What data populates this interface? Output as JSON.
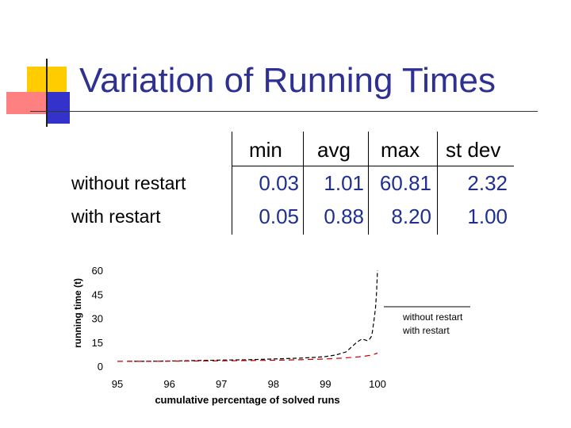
{
  "slide": {
    "title": "Variation of Running Times"
  },
  "colors": {
    "title": "#2e3192",
    "accent_yellow": "#ffcc00",
    "accent_pink": "#ff8080",
    "accent_blue": "#3333cc",
    "with_restart": "#c00000",
    "without_restart": "#000000",
    "blue_values": "#1f2f8f"
  },
  "table": {
    "columns": [
      "min",
      "avg",
      "max",
      "st dev"
    ],
    "rows": [
      {
        "label": "without restart",
        "values": [
          "0.03",
          "1.01",
          "60.81",
          "2.32"
        ]
      },
      {
        "label": "with restart",
        "values": [
          "0.05",
          "0.88",
          "8.20",
          "1.00"
        ]
      }
    ]
  },
  "chart_data": {
    "type": "line",
    "title": "",
    "xlabel": "cumulative percentage of solved runs",
    "ylabel": "running time (t)",
    "xlim": [
      95,
      100
    ],
    "ylim": [
      0,
      60
    ],
    "xticks": [
      "95",
      "96",
      "97",
      "98",
      "99",
      "100"
    ],
    "yticks": [
      "0",
      "15",
      "30",
      "45",
      "60"
    ],
    "legend": [
      "without restart",
      "with restart"
    ],
    "series": [
      {
        "name": "without restart",
        "style": "dashed",
        "x": [
          95.2,
          95.5,
          96.0,
          96.5,
          97.0,
          97.5,
          98.0,
          98.5,
          98.8,
          99.0,
          99.2,
          99.4,
          99.5,
          99.6,
          99.7,
          99.75,
          99.8,
          99.85,
          99.88,
          99.9,
          99.93,
          99.96,
          99.98,
          100.0
        ],
        "values": [
          3.0,
          3.0,
          3.2,
          3.5,
          3.8,
          4.0,
          4.5,
          5.0,
          5.5,
          6.0,
          7.0,
          9.0,
          12.0,
          15.0,
          17.0,
          16.5,
          16.0,
          17.0,
          18.5,
          21.0,
          28.0,
          36.0,
          45.0,
          60.0
        ]
      },
      {
        "name": "with restart",
        "style": "dashed",
        "x": [
          95.0,
          95.5,
          96.0,
          96.5,
          97.0,
          97.5,
          98.0,
          98.5,
          99.0,
          99.3,
          99.5,
          99.7,
          99.8,
          99.9,
          100.0
        ],
        "values": [
          3.0,
          3.0,
          3.1,
          3.2,
          3.3,
          3.5,
          3.7,
          4.0,
          4.5,
          5.0,
          5.5,
          6.0,
          6.5,
          7.0,
          8.2
        ]
      }
    ]
  }
}
